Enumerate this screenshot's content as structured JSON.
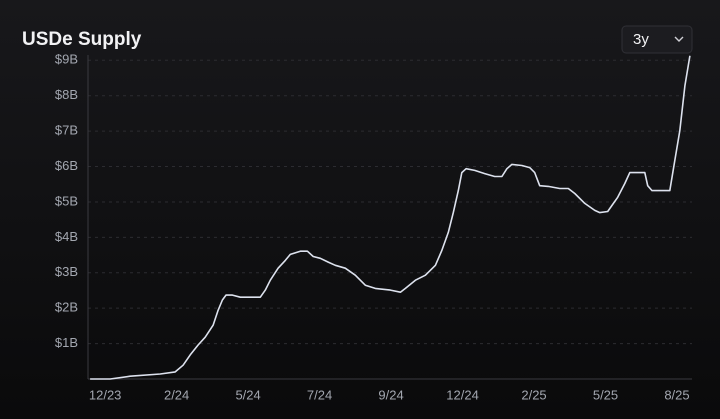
{
  "chart_data": {
    "type": "line",
    "title": "USDe Supply",
    "controls": {
      "range": "3y"
    },
    "color": "#dde2ee",
    "grid": true,
    "xlim": [
      -0.24,
      8.21
    ],
    "ylim": [
      0,
      9.15
    ],
    "xticks": [
      {
        "value": 0,
        "label": "12/23"
      },
      {
        "value": 1,
        "label": "2/24"
      },
      {
        "value": 2,
        "label": "5/24"
      },
      {
        "value": 3,
        "label": "7/24"
      },
      {
        "value": 4,
        "label": "9/24"
      },
      {
        "value": 5,
        "label": "12/24"
      },
      {
        "value": 6,
        "label": "2/25"
      },
      {
        "value": 7,
        "label": "5/25"
      },
      {
        "value": 8,
        "label": "8/25"
      }
    ],
    "yticks": [
      {
        "value": 1,
        "label": "$1B"
      },
      {
        "value": 2,
        "label": "$2B"
      },
      {
        "value": 3,
        "label": "$3B"
      },
      {
        "value": 4,
        "label": "$4B"
      },
      {
        "value": 5,
        "label": "$5B"
      },
      {
        "value": 6,
        "label": "$6B"
      },
      {
        "value": 7,
        "label": "$7B"
      },
      {
        "value": 8,
        "label": "$8B"
      },
      {
        "value": 9,
        "label": "$9B"
      }
    ],
    "x": [
      -0.21,
      0.07,
      0.35,
      0.77,
      0.98,
      1.09,
      1.19,
      1.3,
      1.4,
      1.51,
      1.58,
      1.64,
      1.69,
      1.78,
      1.89,
      2.03,
      2.17,
      2.24,
      2.31,
      2.42,
      2.52,
      2.59,
      2.73,
      2.83,
      2.91,
      3.01,
      3.12,
      3.22,
      3.36,
      3.5,
      3.64,
      3.78,
      3.99,
      4.13,
      4.2,
      4.34,
      4.48,
      4.62,
      4.71,
      4.8,
      4.87,
      4.94,
      4.99,
      5.05,
      5.17,
      5.31,
      5.45,
      5.55,
      5.62,
      5.69,
      5.83,
      5.94,
      6.01,
      6.08,
      6.2,
      6.36,
      6.48,
      6.57,
      6.71,
      6.85,
      6.92,
      7.03,
      7.09,
      7.17,
      7.27,
      7.34,
      7.48,
      7.55,
      7.59,
      7.65,
      7.83,
      7.9,
      7.97,
      8.04,
      8.11,
      8.18
    ],
    "values": [
      0,
      0,
      0.08,
      0.14,
      0.2,
      0.39,
      0.68,
      0.96,
      1.18,
      1.52,
      1.94,
      2.23,
      2.37,
      2.37,
      2.31,
      2.31,
      2.31,
      2.51,
      2.79,
      3.13,
      3.35,
      3.52,
      3.61,
      3.61,
      3.46,
      3.41,
      3.3,
      3.21,
      3.13,
      2.93,
      2.65,
      2.56,
      2.51,
      2.45,
      2.56,
      2.79,
      2.93,
      3.21,
      3.63,
      4.14,
      4.7,
      5.32,
      5.83,
      5.94,
      5.89,
      5.8,
      5.72,
      5.72,
      5.94,
      6.06,
      6.03,
      5.97,
      5.83,
      5.46,
      5.44,
      5.38,
      5.38,
      5.24,
      4.96,
      4.76,
      4.7,
      4.73,
      4.9,
      5.13,
      5.52,
      5.83,
      5.83,
      5.83,
      5.46,
      5.32,
      5.32,
      5.32,
      6.17,
      7.01,
      8.28,
      9.13
    ]
  }
}
